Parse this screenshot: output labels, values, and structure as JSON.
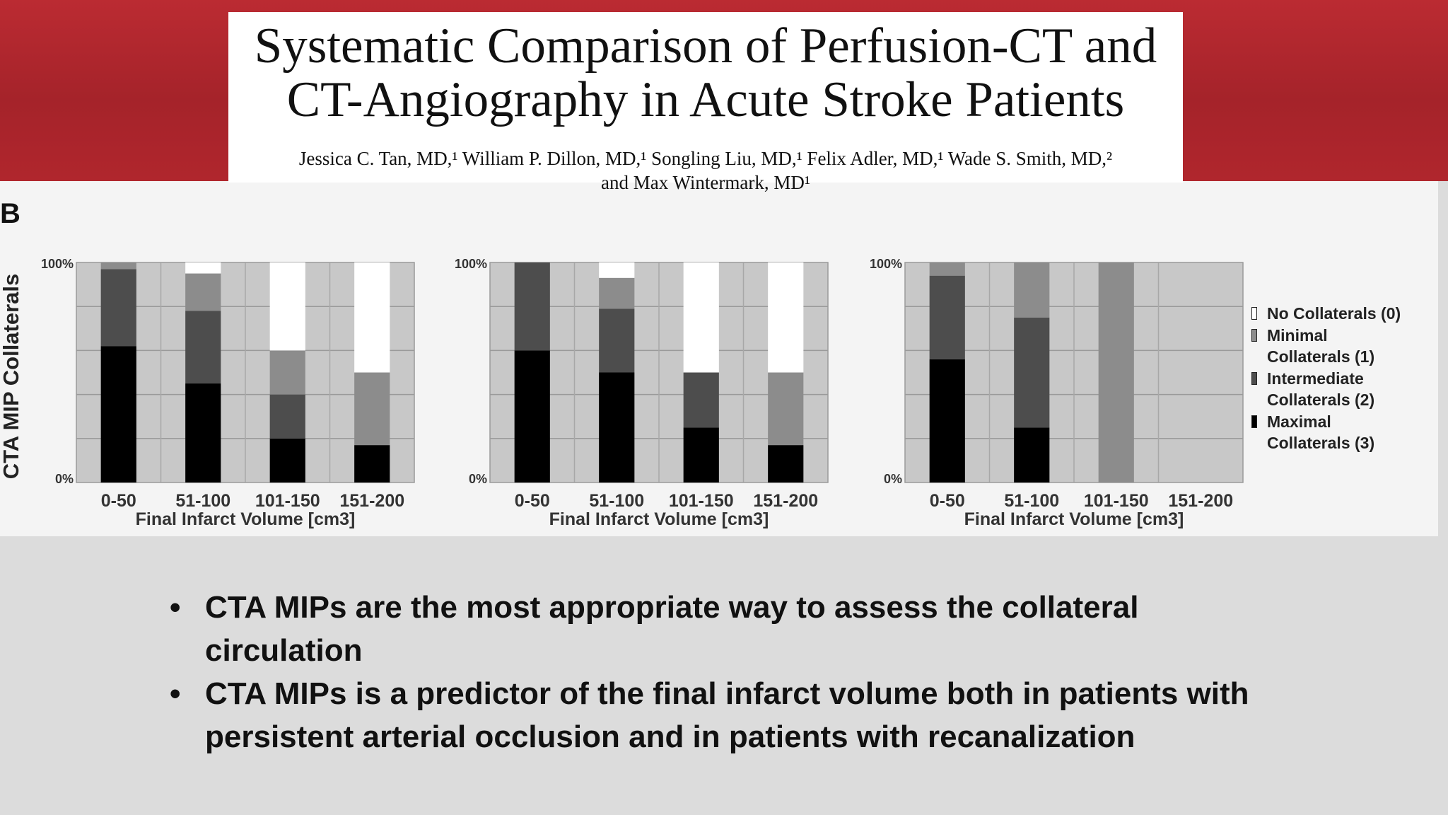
{
  "slide": {
    "title_line1": "Systematic Comparison of Perfusion-CT and",
    "title_line2": "CT-Angiography in Acute Stroke Patients",
    "authors_line1": "Jessica C. Tan, MD,¹ William P. Dillon, MD,¹ Songling Liu, MD,¹ Felix Adler, MD,¹ Wade S. Smith, MD,²",
    "authors_line2": "and Max Wintermark, MD¹",
    "panel_label": "B",
    "bullet_symbol": "•",
    "bullets": [
      "CTA MIPs are the most appropriate way to assess the collateral circulation",
      "CTA MIPs is a predictor of the final infarct volume both in patients with persistent arterial occlusion and in patients with recanalization"
    ]
  },
  "colors": {
    "header_red": "#b0262d",
    "slide_background": "#dcdcdc",
    "plot_background": "#c8c8c8"
  },
  "chart_data": [
    {
      "type": "bar",
      "stacked": true,
      "ylabel": "CTA MIP Collaterals",
      "xlabel": "Final Infarct Volume [cm3]",
      "yticks": [
        "100%",
        "0%"
      ],
      "ylim": [
        0,
        100
      ],
      "grid": true,
      "categories": [
        "0-50",
        "51-100",
        "101-150",
        "151-200"
      ],
      "series": [
        {
          "name": "Maximal Collaterals (3)",
          "color": "#000000",
          "values": [
            62,
            45,
            20,
            17
          ]
        },
        {
          "name": "Intermediate Collaterals (2)",
          "color": "#4d4d4d",
          "values": [
            35,
            33,
            20,
            0
          ]
        },
        {
          "name": "Minimal Collaterals (1)",
          "color": "#8c8c8c",
          "values": [
            3,
            17,
            20,
            33
          ]
        },
        {
          "name": "No Collaterals (0)",
          "color": "#ffffff",
          "values": [
            0,
            5,
            40,
            50
          ]
        }
      ]
    },
    {
      "type": "bar",
      "stacked": true,
      "xlabel": "Final Infarct Volume [cm3]",
      "yticks": [
        "100%",
        "0%"
      ],
      "ylim": [
        0,
        100
      ],
      "grid": true,
      "categories": [
        "0-50",
        "51-100",
        "101-150",
        "151-200"
      ],
      "series": [
        {
          "name": "Maximal Collaterals (3)",
          "color": "#000000",
          "values": [
            60,
            50,
            25,
            17
          ]
        },
        {
          "name": "Intermediate Collaterals (2)",
          "color": "#4d4d4d",
          "values": [
            40,
            29,
            25,
            0
          ]
        },
        {
          "name": "Minimal Collaterals (1)",
          "color": "#8c8c8c",
          "values": [
            0,
            14,
            0,
            33
          ]
        },
        {
          "name": "No Collaterals (0)",
          "color": "#ffffff",
          "values": [
            0,
            7,
            50,
            50
          ]
        }
      ]
    },
    {
      "type": "bar",
      "stacked": true,
      "xlabel": "Final Infarct Volume [cm3]",
      "yticks": [
        "100%",
        "0%"
      ],
      "ylim": [
        0,
        100
      ],
      "grid": true,
      "legend": "right",
      "categories": [
        "0-50",
        "51-100",
        "101-150",
        "151-200"
      ],
      "series": [
        {
          "name": "Maximal Collaterals (3)",
          "color": "#000000",
          "values": [
            56,
            25,
            0,
            0
          ]
        },
        {
          "name": "Intermediate Collaterals (2)",
          "color": "#4d4d4d",
          "values": [
            38,
            50,
            0,
            0
          ]
        },
        {
          "name": "Minimal Collaterals (1)",
          "color": "#8c8c8c",
          "values": [
            6,
            25,
            100,
            0
          ]
        },
        {
          "name": "No Collaterals (0)",
          "color": "#ffffff",
          "values": [
            0,
            0,
            0,
            0
          ]
        }
      ]
    }
  ],
  "legend": {
    "items": [
      {
        "label_lines": [
          "No Collaterals (0)"
        ],
        "color": "#ffffff"
      },
      {
        "label_lines": [
          "Minimal",
          "Collaterals (1)"
        ],
        "color": "#8c8c8c"
      },
      {
        "label_lines": [
          "Intermediate",
          "Collaterals (2)"
        ],
        "color": "#4d4d4d"
      },
      {
        "label_lines": [
          "Maximal",
          "Collaterals (3)"
        ],
        "color": "#000000"
      }
    ]
  }
}
